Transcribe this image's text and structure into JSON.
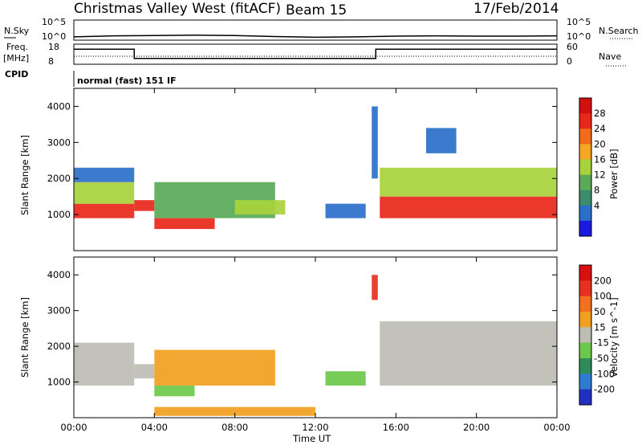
{
  "header": {
    "title": "Christmas Valley West (fitACF)",
    "beam": "Beam 15",
    "date": "17/Feb/2014"
  },
  "top_panels": {
    "nsky_label": "N.Sky",
    "nsky_ticks": [
      "10^5",
      "10^0"
    ],
    "nsearch_label": "N.Search",
    "nsearch_ticks": [
      "10^5",
      "10^0"
    ],
    "freq_label": "Freq.",
    "freq_unit": "[MHz]",
    "freq_ticks": [
      "18",
      "8"
    ],
    "nave_label": "Nave",
    "nave_ticks": [
      "60",
      "0"
    ],
    "cpid_label": "CPID",
    "cpid_value": "normal (fast) 151 IF"
  },
  "colors": {
    "power": [
      "#1a1ae0",
      "#2a6fc8",
      "#3c8c6e",
      "#5aaa5a",
      "#a8d23c",
      "#f5a623",
      "#f26b1d",
      "#e8281a",
      "#d40f0f"
    ],
    "velocity": [
      "#2030c0",
      "#2f7bd0",
      "#2f8c5a",
      "#6cc84a",
      "#bdbdb4",
      "#f0a020",
      "#f07020",
      "#e83020",
      "#d81010"
    ]
  },
  "x_axis": {
    "label": "Time UT",
    "ticks": [
      "00:00",
      "04:00",
      "08:00",
      "12:00",
      "16:00",
      "20:00",
      "00:00"
    ]
  },
  "chart_data": [
    {
      "type": "line",
      "title": "N.Sky / N.Search",
      "scale": "log",
      "ylim_label": [
        "10^0",
        "10^5"
      ],
      "x_hours": [
        0,
        2,
        4,
        6,
        8,
        10,
        12,
        14,
        16,
        18,
        20,
        22,
        24
      ],
      "values_exponent": [
        0.5,
        0.8,
        0.9,
        1.0,
        0.9,
        0.6,
        0.4,
        0.5,
        0.7,
        0.8,
        0.7,
        0.7,
        0.8
      ]
    },
    {
      "type": "line",
      "title": "Freq. [MHz]",
      "ylim": [
        8,
        18
      ],
      "segments": [
        {
          "x_start": 0.0,
          "x_end": 3.0,
          "value": 16
        },
        {
          "x_start": 3.0,
          "x_end": 15.0,
          "value": 10.5
        },
        {
          "x_start": 15.0,
          "x_end": 24.0,
          "value": 16
        }
      ]
    },
    {
      "type": "heatmap",
      "name": "Power",
      "colorbar_label": "Power [dB]",
      "colorbar_ticks": [
        "28",
        "24",
        "20",
        "16",
        "12",
        "8",
        "4"
      ],
      "ylabel": "Slant Range [km]",
      "y_ticks": [
        "4000",
        "3000",
        "2000",
        "1000"
      ],
      "ylim": [
        0,
        4500
      ],
      "xlim_hours": [
        0,
        24
      ],
      "blobs": [
        {
          "t0": 0.0,
          "t1": 3.0,
          "r0": 900,
          "r1": 1300,
          "level": 7
        },
        {
          "t0": 0.0,
          "t1": 3.0,
          "r0": 1300,
          "r1": 1900,
          "level": 4
        },
        {
          "t0": 0.0,
          "t1": 3.0,
          "r0": 1900,
          "r1": 2300,
          "level": 1
        },
        {
          "t0": 3.0,
          "t1": 4.0,
          "r0": 1100,
          "r1": 1400,
          "level": 7
        },
        {
          "t0": 4.0,
          "t1": 7.0,
          "r0": 600,
          "r1": 900,
          "level": 7
        },
        {
          "t0": 4.0,
          "t1": 10.0,
          "r0": 900,
          "r1": 1900,
          "level": 3
        },
        {
          "t0": 8.0,
          "t1": 10.5,
          "r0": 1000,
          "r1": 1400,
          "level": 4
        },
        {
          "t0": 12.5,
          "t1": 14.5,
          "r0": 900,
          "r1": 1300,
          "level": 1
        },
        {
          "t0": 14.8,
          "t1": 15.1,
          "r0": 2000,
          "r1": 4000,
          "level": 1
        },
        {
          "t0": 15.2,
          "t1": 24.0,
          "r0": 900,
          "r1": 1500,
          "level": 7
        },
        {
          "t0": 15.2,
          "t1": 24.0,
          "r0": 1500,
          "r1": 2300,
          "level": 4
        },
        {
          "t0": 17.5,
          "t1": 19.0,
          "r0": 2700,
          "r1": 3400,
          "level": 1
        }
      ]
    },
    {
      "type": "heatmap",
      "name": "Velocity",
      "colorbar_label": "Velocity [m s^-1]",
      "colorbar_ticks": [
        "200",
        "100",
        "50",
        "15",
        "-15",
        "-50",
        "-100",
        "-200"
      ],
      "ylabel": "Slant Range [km]",
      "y_ticks": [
        "4000",
        "3000",
        "2000",
        "1000"
      ],
      "ylim": [
        0,
        4500
      ],
      "xlim_hours": [
        0,
        24
      ],
      "blobs": [
        {
          "t0": 0.0,
          "t1": 3.0,
          "r0": 900,
          "r1": 2100,
          "level": 4
        },
        {
          "t0": 3.0,
          "t1": 4.0,
          "r0": 1100,
          "r1": 1500,
          "level": 4
        },
        {
          "t0": 4.0,
          "t1": 6.0,
          "r0": 600,
          "r1": 900,
          "level": 3
        },
        {
          "t0": 4.0,
          "t1": 10.0,
          "r0": 900,
          "r1": 1900,
          "level": 5
        },
        {
          "t0": 4.0,
          "t1": 12.0,
          "r0": 50,
          "r1": 300,
          "level": 5
        },
        {
          "t0": 12.5,
          "t1": 14.5,
          "r0": 900,
          "r1": 1300,
          "level": 3
        },
        {
          "t0": 14.8,
          "t1": 15.1,
          "r0": 3300,
          "r1": 4000,
          "level": 7
        },
        {
          "t0": 15.2,
          "t1": 24.0,
          "r0": 900,
          "r1": 2700,
          "level": 4
        }
      ]
    }
  ]
}
